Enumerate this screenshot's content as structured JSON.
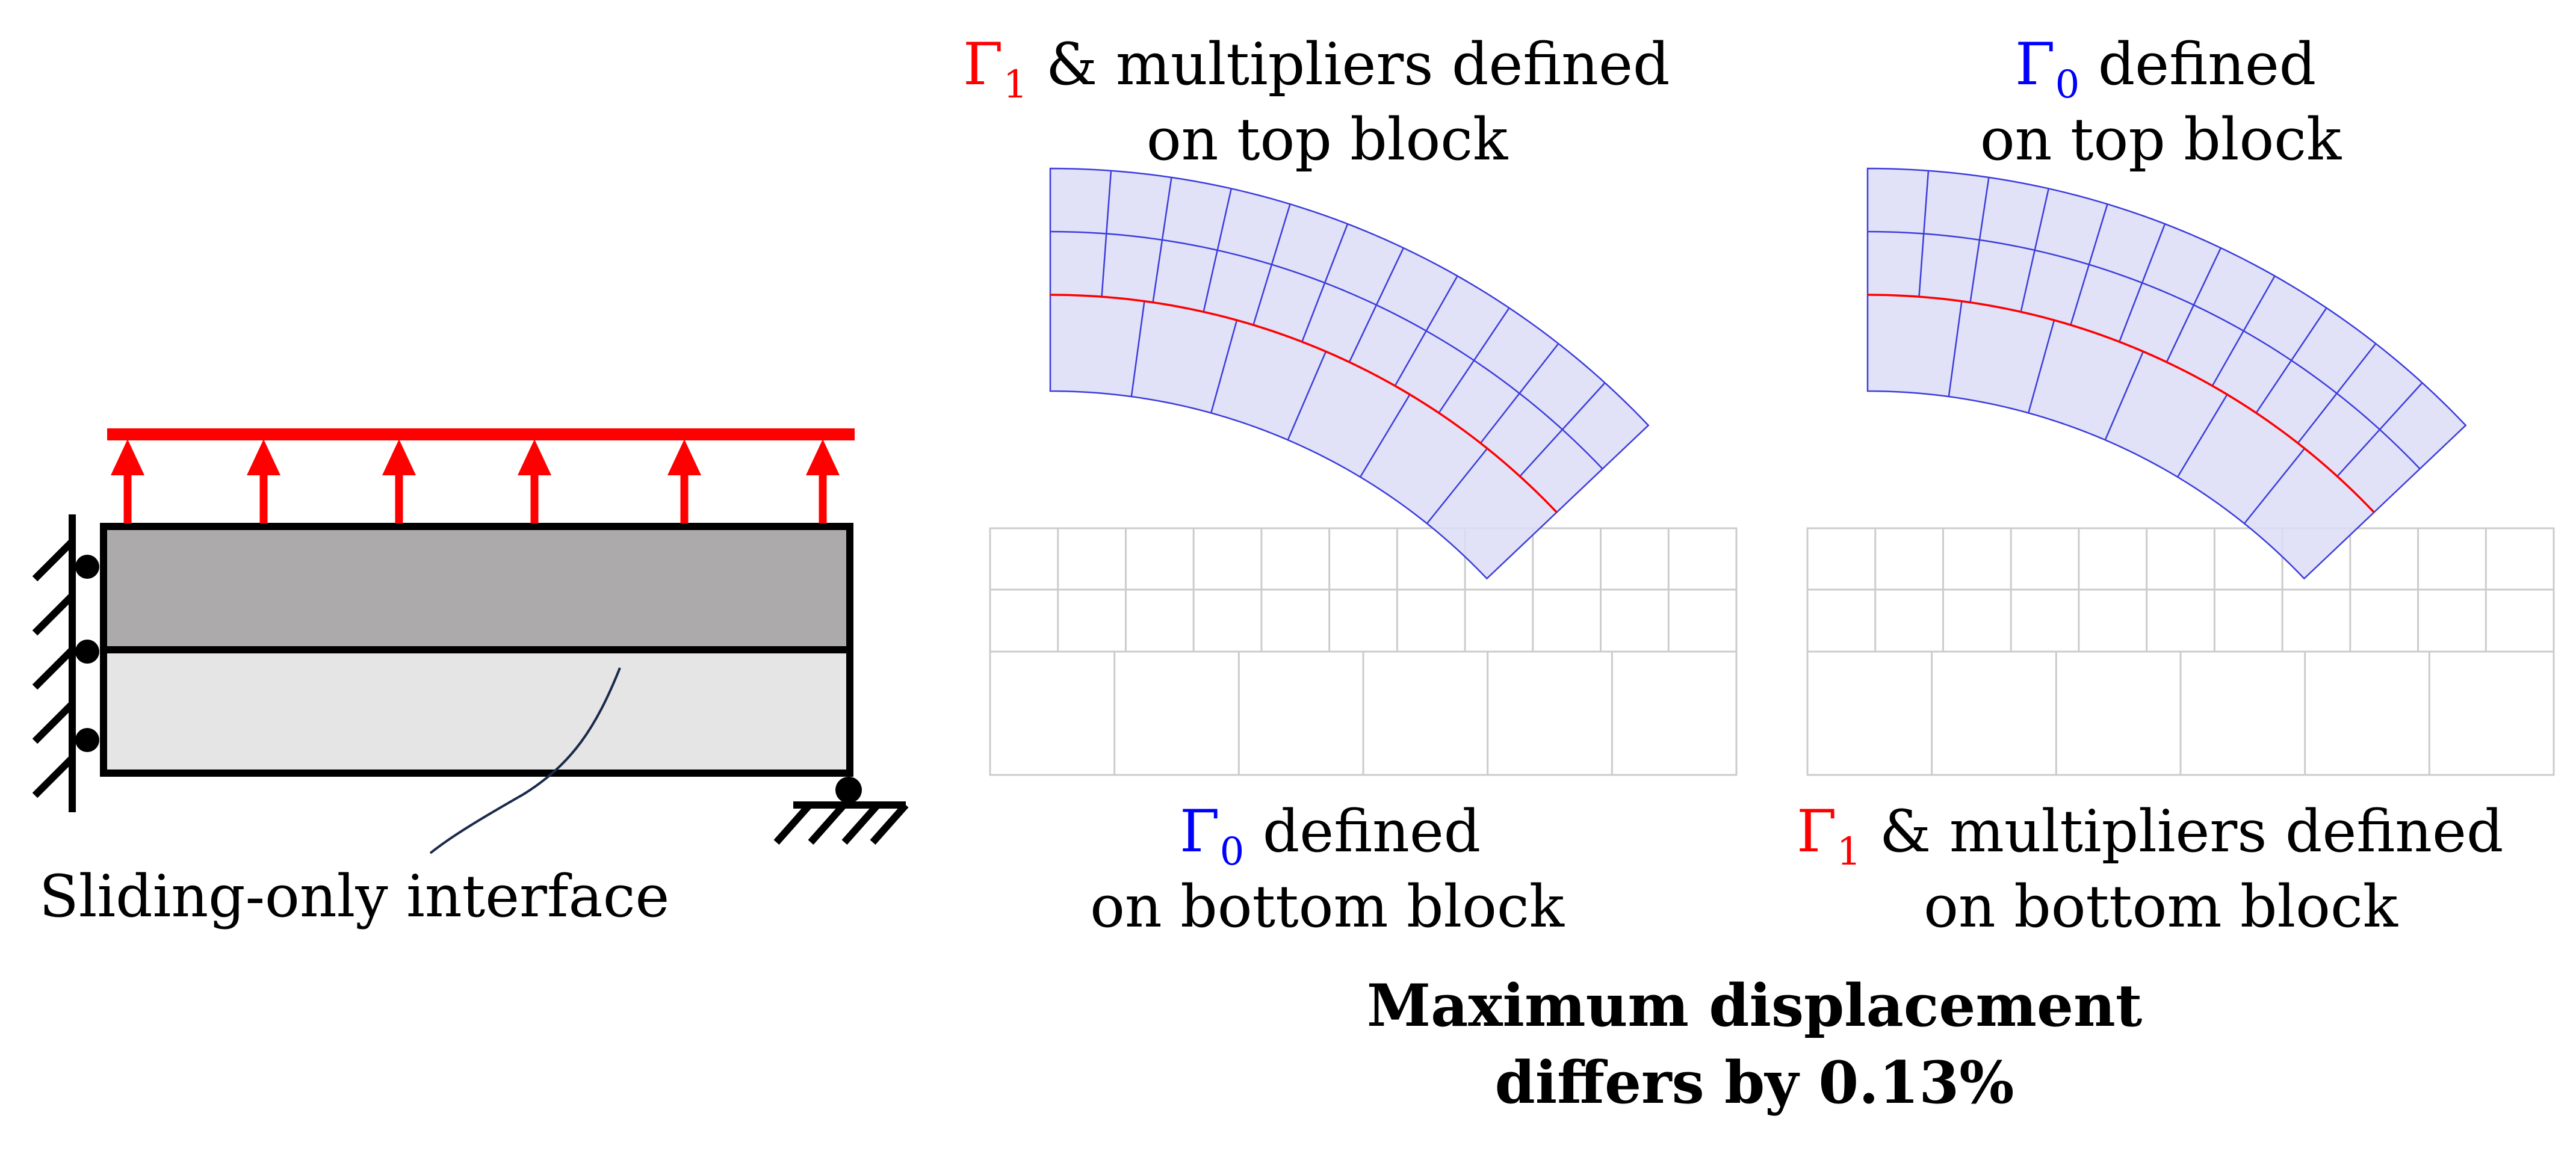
{
  "left_diagram": {
    "annotation": "Sliding-only interface"
  },
  "panel_top_ref": {
    "symbol": "Γ",
    "subscript": "1",
    "line1_rest": "& multipliers defined",
    "line2": "on top block"
  },
  "panel_top_new": {
    "symbol": "Γ",
    "subscript": "0",
    "line1_rest": "defined",
    "line2": "on top block"
  },
  "panel_bottom_ref": {
    "symbol": "Γ",
    "subscript": "0",
    "line1_rest": "defined",
    "line2": "on bottom block"
  },
  "panel_bottom_new": {
    "symbol": "Γ",
    "subscript": "1",
    "line1_rest": "& multipliers defined",
    "line2": "on bottom block"
  },
  "conclusion": {
    "line1": "Maximum displacement",
    "line2": "differs by 0.13%"
  },
  "colors": {
    "gamma1": "#ff0000",
    "gamma0": "#0000ff",
    "load": "#ff0000",
    "top_block": "#acaaaa",
    "bottom_block": "#e5e5e5",
    "deformed_mesh_fill": "#dcdcf6",
    "deformed_mesh_line": "#3c3cdc",
    "undeformed_mesh_line": "#cccccc",
    "leader_line": "#1a2a4a"
  }
}
